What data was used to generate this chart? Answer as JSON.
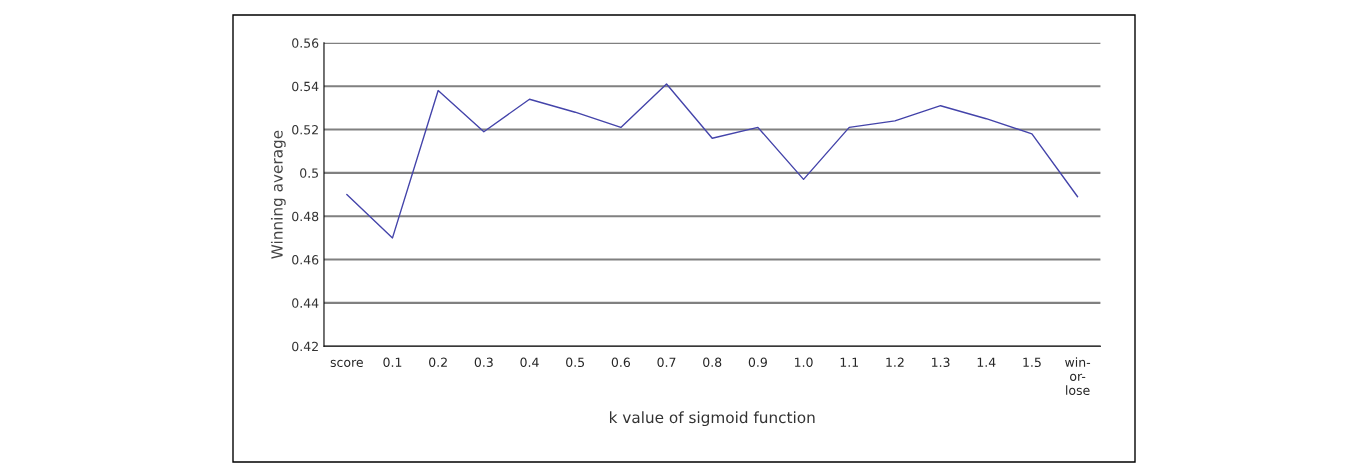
{
  "chart_data": {
    "type": "line",
    "xlabel": "k value of sigmoid function",
    "ylabel": "Winning average",
    "categories": [
      "score",
      "0.1",
      "0.2",
      "0.3",
      "0.4",
      "0.5",
      "0.6",
      "0.7",
      "0.8",
      "0.9",
      "1.0",
      "1.1",
      "1.2",
      "1.3",
      "1.4",
      "1.5",
      "win-\nor-\nlose"
    ],
    "series": [
      {
        "color": "#4444aa",
        "values": [
          0.49,
          0.47,
          0.538,
          0.519,
          0.534,
          0.528,
          0.521,
          0.541,
          0.516,
          0.521,
          0.497,
          0.521,
          0.524,
          0.531,
          0.525,
          0.518,
          0.489
        ]
      }
    ],
    "ylim": [
      0.42,
      0.56
    ],
    "yticks": [
      0.42,
      0.44,
      0.46,
      0.48,
      0.5,
      0.52,
      0.54,
      0.56
    ],
    "grid": "y",
    "marker": "none",
    "line_style": "solid"
  }
}
